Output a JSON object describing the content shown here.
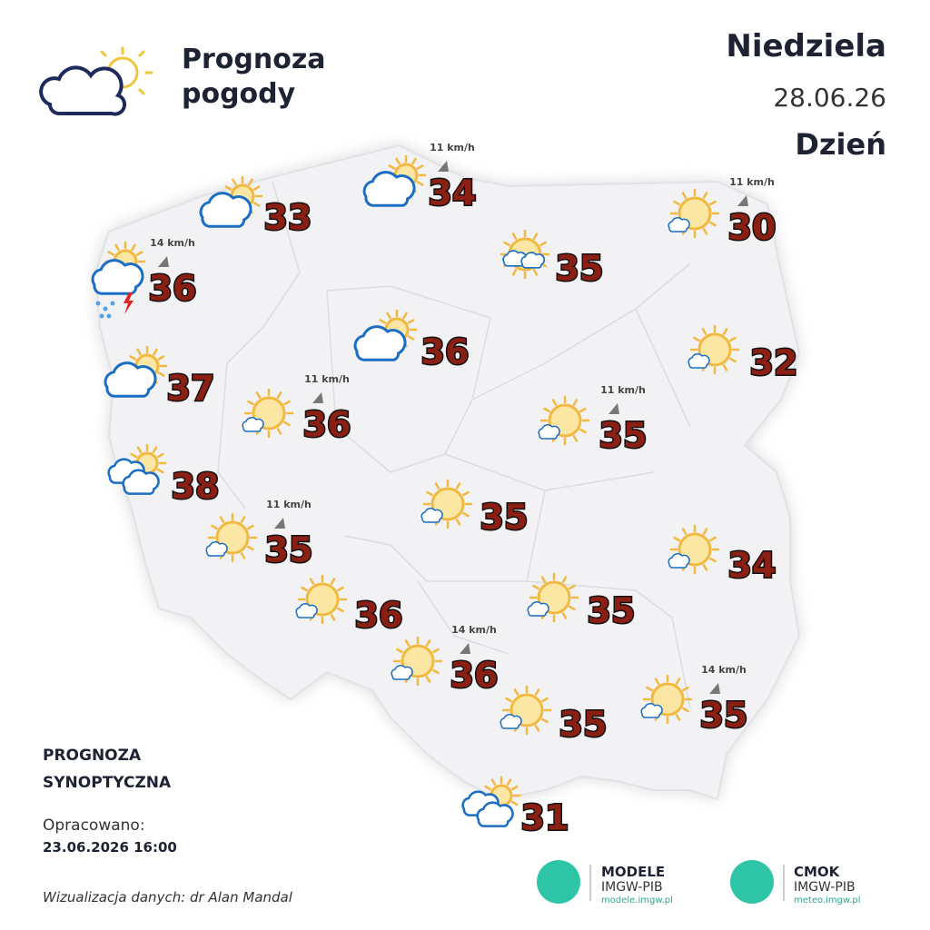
{
  "header": {
    "title_lines": [
      "Prognoza",
      "pogody"
    ],
    "day": "Niedziela",
    "date": "28.06.26",
    "period": "Dzień"
  },
  "forecast": [
    {
      "temp": 33
    },
    {
      "temp": 34,
      "wind": "11 km/h"
    },
    {
      "temp": 30,
      "wind": "11 km/h"
    },
    {
      "temp": 35
    },
    {
      "temp": 36,
      "wind": "14 km/h"
    },
    {
      "temp": 36
    },
    {
      "temp": 32
    },
    {
      "temp": 37
    },
    {
      "temp": 36,
      "wind": "11 km/h"
    },
    {
      "temp": 35,
      "wind": "11 km/h"
    },
    {
      "temp": 38
    },
    {
      "temp": 35
    },
    {
      "temp": 35,
      "wind": "11 km/h"
    },
    {
      "temp": 34
    },
    {
      "temp": 36
    },
    {
      "temp": 35
    },
    {
      "temp": 36,
      "wind": "14 km/h"
    },
    {
      "temp": 35
    },
    {
      "temp": 35,
      "wind": "14 km/h"
    },
    {
      "temp": 31
    }
  ],
  "footer": {
    "type_lines": [
      "PROGNOZA",
      "SYNOPTYCZNA"
    ],
    "prepared_label": "Opracowano:",
    "prepared_date": "23.06.2026 16:00",
    "credit": "Wizualizacja danych: dr Alan Mandal"
  },
  "logos": [
    {
      "name": "MODELE",
      "org": "IMGW-PIB",
      "url": "modele.imgw.pl"
    },
    {
      "name": "CMOK",
      "org": "IMGW-PIB",
      "url": "meteo.imgw.pl"
    }
  ]
}
